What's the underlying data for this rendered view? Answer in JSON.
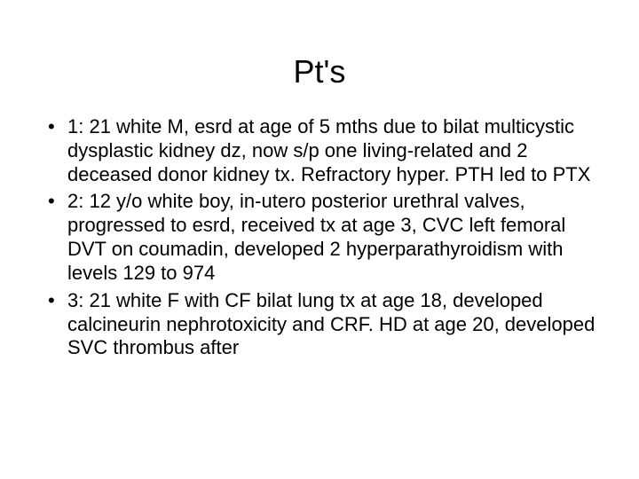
{
  "slide": {
    "title": "Pt's",
    "bullets": [
      "1: 21 white M, esrd at age of 5 mths due to bilat multicystic dysplastic kidney dz, now s/p one living-related and 2 deceased donor kidney tx. Refractory hyper. PTH led to PTX",
      "2: 12 y/o white boy, in-utero posterior urethral valves, progressed to esrd, received tx at age 3, CVC left femoral DVT on coumadin, developed 2 hyperparathyroidism with levels 129 to 974",
      "3: 21 white F with CF bilat lung tx at age 18, developed calcineurin nephrotoxicity and CRF. HD at age 20, developed SVC thrombus after"
    ]
  },
  "styling": {
    "background_color": "#ffffff",
    "text_color": "#000000",
    "title_fontsize": 36,
    "body_fontsize": 22,
    "font_family": "Arial",
    "title_align": "center",
    "bullet_char": "•",
    "line_height": 1.22
  }
}
